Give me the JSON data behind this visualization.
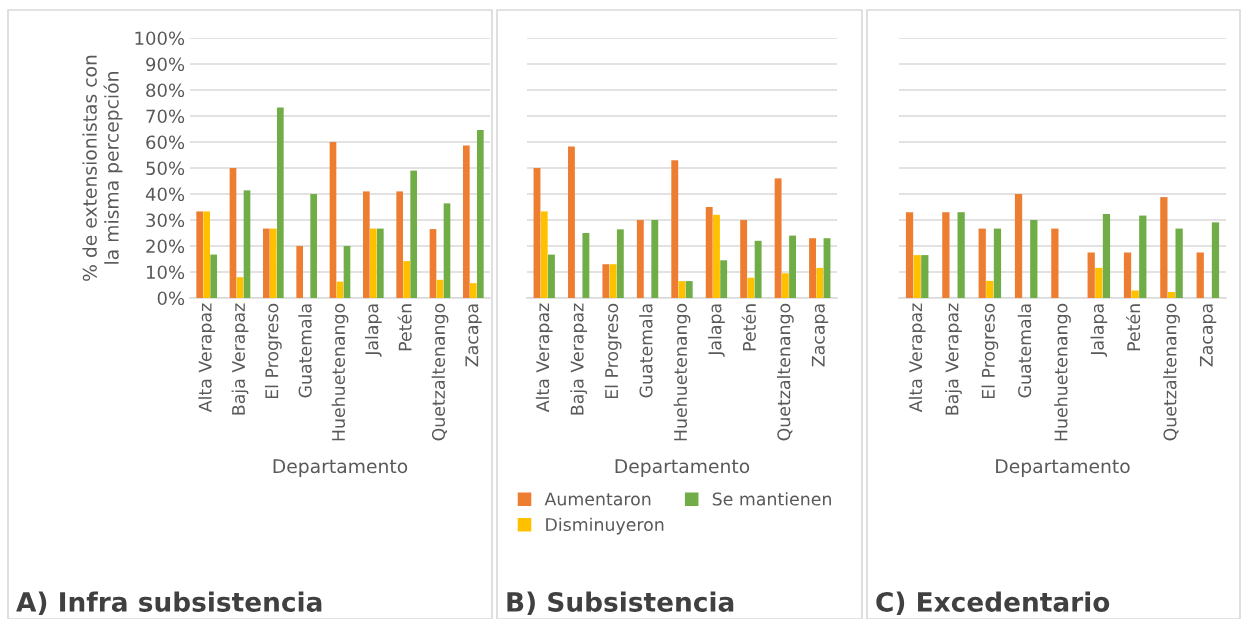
{
  "chart_data": [
    {
      "type": "bar",
      "title": "A) Infra subsistencia",
      "xlabel": "Departamento",
      "ylabel": "% de extensionistas con\nla misma percepción",
      "categories": [
        "Alta Verapaz",
        "Baja Verapaz",
        "El Progreso",
        "Guatemala",
        "Huehuetenango",
        "Jalapa",
        "Petén",
        "Quetzaltenango",
        "Zacapa"
      ],
      "series": [
        {
          "color": "#ed7d31",
          "values": [
            33.3,
            50,
            26.7,
            20,
            60,
            41,
            41,
            26.5,
            58.7
          ]
        },
        {
          "color": "#ffc000",
          "values": [
            33.3,
            8,
            26.7,
            null,
            6.3,
            26.7,
            14.2,
            7,
            5.7
          ]
        },
        {
          "color": "#70ad47",
          "values": [
            16.7,
            41.4,
            73.3,
            40,
            20,
            26.7,
            49,
            36.4,
            64.6
          ]
        }
      ],
      "ylim": [
        0,
        100
      ],
      "yticks": [
        {
          "value": 0,
          "label": "0%"
        },
        {
          "value": 10,
          "label": "10%"
        },
        {
          "value": 20,
          "label": "20%"
        },
        {
          "value": 30,
          "label": "30%"
        },
        {
          "value": 40,
          "label": "40%"
        },
        {
          "value": 50,
          "label": "50%"
        },
        {
          "value": 60,
          "label": "60%"
        },
        {
          "value": 70,
          "label": "70%"
        },
        {
          "value": 80,
          "label": "80%"
        },
        {
          "value": 90,
          "label": "90%"
        },
        {
          "value": 100,
          "label": "100%"
        }
      ],
      "grid": "y"
    },
    {
      "type": "bar",
      "title": "B) Subsistencia",
      "xlabel": "Departamento",
      "categories": [
        "Alta Verapaz",
        "Baja Verapaz",
        "El Progreso",
        "Guatemala",
        "Huehuetenango",
        "Jalapa",
        "Petén",
        "Quetzaltenango",
        "Zacapa"
      ],
      "series": [
        {
          "name": "Aumentaron",
          "color": "#ed7d31",
          "values": [
            50,
            58.3,
            13,
            30,
            53,
            35,
            30,
            46,
            23
          ]
        },
        {
          "name": "Disminuyeron",
          "color": "#ffc000",
          "values": [
            33.3,
            null,
            13,
            null,
            6.5,
            32,
            7.8,
            9.5,
            11.6
          ]
        },
        {
          "name": "Se mantienen",
          "color": "#70ad47",
          "values": [
            16.7,
            25,
            26.4,
            30,
            6.5,
            14.5,
            22,
            24,
            23
          ]
        }
      ],
      "ylim": [
        0,
        100
      ],
      "yticks": [
        {
          "value": 0,
          "label": null
        },
        {
          "value": 10,
          "label": null
        },
        {
          "value": 20,
          "label": null
        },
        {
          "value": 30,
          "label": null
        },
        {
          "value": 40,
          "label": null
        },
        {
          "value": 50,
          "label": null
        },
        {
          "value": 60,
          "label": null
        },
        {
          "value": 70,
          "label": null
        },
        {
          "value": 80,
          "label": null
        },
        {
          "value": 90,
          "label": null
        },
        {
          "value": 100,
          "label": null
        }
      ],
      "tick_labels": "x",
      "grid": "y",
      "legend": "bottom"
    },
    {
      "type": "bar",
      "title": "C) Excedentario",
      "xlabel": "Departamento",
      "categories": [
        "Alta Verapaz",
        "Baja Verapaz",
        "El Progreso",
        "Guatemala",
        "Huehuetenango",
        "Jalapa",
        "Petén",
        "Quetzaltenango",
        "Zacapa"
      ],
      "series": [
        {
          "color": "#ed7d31",
          "values": [
            33,
            33,
            26.7,
            40,
            26.7,
            17.5,
            17.5,
            38.8,
            17.5
          ]
        },
        {
          "color": "#ffc000",
          "values": [
            16.5,
            null,
            6.6,
            null,
            null,
            11.6,
            2.9,
            2.3,
            null
          ]
        },
        {
          "color": "#70ad47",
          "values": [
            16.5,
            33,
            26.7,
            30,
            null,
            32.3,
            31.7,
            26.7,
            29.1
          ]
        }
      ],
      "ylim": [
        0,
        100
      ],
      "yticks": [
        {
          "value": 0,
          "label": null
        },
        {
          "value": 10,
          "label": null
        },
        {
          "value": 20,
          "label": null
        },
        {
          "value": 30,
          "label": null
        },
        {
          "value": 40,
          "label": null
        },
        {
          "value": 50,
          "label": null
        },
        {
          "value": 60,
          "label": null
        },
        {
          "value": 70,
          "label": null
        },
        {
          "value": 80,
          "label": null
        },
        {
          "value": 90,
          "label": null
        },
        {
          "value": 100,
          "label": null
        }
      ],
      "tick_labels": "x",
      "grid": "y"
    }
  ]
}
